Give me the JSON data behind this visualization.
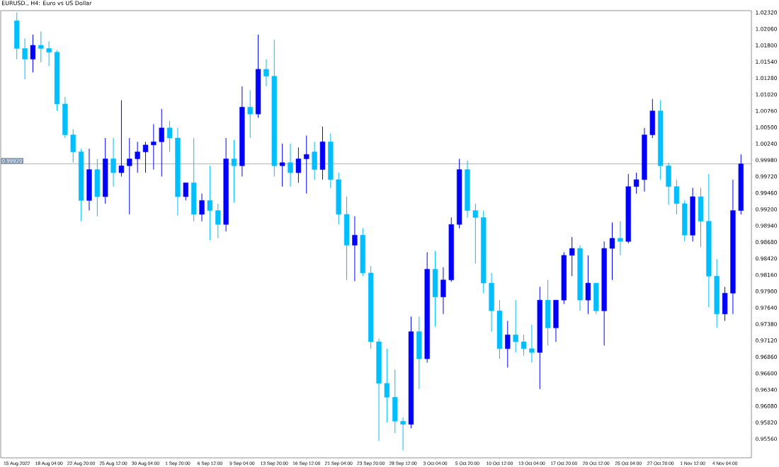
{
  "chart_data": {
    "type": "candlestick",
    "title": "EURUSD., H4:  Euro vs US Dollar",
    "categories": [
      "15 Aug 2022",
      null,
      null,
      null,
      "18 Aug 04:00",
      null,
      null,
      null,
      "22 Aug 20:00",
      null,
      null,
      null,
      "25 Aug 12:00",
      null,
      null,
      null,
      "30 Aug 04:00",
      null,
      null,
      null,
      "1 Sep 20:00",
      null,
      null,
      null,
      "6 Sep 12:00",
      null,
      null,
      null,
      "9 Sep 04:00",
      null,
      null,
      null,
      "13 Sep 20:00",
      null,
      null,
      null,
      "16 Sep 12:00",
      null,
      null,
      null,
      "21 Sep 04:00",
      null,
      null,
      null,
      "23 Sep 20:00",
      null,
      null,
      null,
      "28 Sep 12:00",
      null,
      null,
      null,
      "3 Oct 04:00",
      null,
      null,
      null,
      "5 Oct 20:00",
      null,
      null,
      null,
      "10 Oct 12:00",
      null,
      null,
      null,
      "13 Oct 04:00",
      null,
      null,
      null,
      "17 Oct 20:00",
      null,
      null,
      null,
      "20 Oct 12:00",
      null,
      null,
      null,
      "25 Oct 04:00",
      null,
      null,
      null,
      "27 Oct 20:00",
      null,
      null,
      null,
      "1 Nov 12:00",
      null,
      null,
      null,
      "4 Nov 04:00",
      null,
      null
    ],
    "ohlc": [
      [
        1.0219,
        1.0232,
        1.0158,
        1.0175
      ],
      [
        1.0175,
        1.0191,
        1.0126,
        1.0158
      ],
      [
        1.0158,
        1.0197,
        1.0137,
        1.018
      ],
      [
        1.018,
        1.0202,
        1.0153,
        1.0175
      ],
      [
        1.0175,
        1.0186,
        1.0147,
        1.0169
      ],
      [
        1.0169,
        1.0172,
        1.0076,
        1.0087
      ],
      [
        1.0087,
        1.0098,
        1.0033,
        1.0038
      ],
      [
        1.0038,
        1.0047,
        0.9994,
        1.0011
      ],
      [
        1.0011,
        1.0016,
        0.9901,
        0.9934
      ],
      [
        0.9934,
        1.0016,
        0.9918,
        0.9983
      ],
      [
        0.9983,
        1.0,
        0.9909,
        0.994
      ],
      [
        0.994,
        1.0033,
        0.9929,
        1.0
      ],
      [
        1.0,
        1.0033,
        0.9956,
        0.9978
      ],
      [
        0.9978,
        1.0093,
        0.9972,
        0.9989
      ],
      [
        0.9989,
        1.0033,
        0.9912,
        1.0
      ],
      [
        1.0,
        1.0027,
        0.9978,
        1.0011
      ],
      [
        1.0011,
        1.0027,
        0.9978,
        1.0022
      ],
      [
        1.0022,
        1.0055,
        0.9983,
        1.0027
      ],
      [
        1.0027,
        1.0079,
        0.9972,
        1.0049
      ],
      [
        1.0049,
        1.006,
        1.0011,
        1.0033
      ],
      [
        1.0033,
        1.0049,
        0.991,
        0.994
      ],
      [
        0.994,
        0.9962,
        0.9934,
        0.9962
      ],
      [
        0.9962,
        1.0033,
        0.9901,
        0.9912
      ],
      [
        0.9912,
        0.9945,
        0.9901,
        0.9934
      ],
      [
        0.9934,
        0.9989,
        0.9871,
        0.9918
      ],
      [
        0.9918,
        0.9929,
        0.9874,
        0.9896
      ],
      [
        0.9896,
        1.0033,
        0.9885,
        1.0
      ],
      [
        1.0,
        1.003,
        0.9931,
        0.9989
      ],
      [
        0.9989,
        1.0115,
        0.9972,
        1.0082
      ],
      [
        1.0082,
        1.0109,
        1.0033,
        1.0071
      ],
      [
        1.0071,
        1.0197,
        1.0065,
        1.0142
      ],
      [
        1.0142,
        1.0158,
        1.0115,
        1.0131
      ],
      [
        1.0131,
        1.0189,
        0.9972,
        0.9989
      ],
      [
        0.9989,
        1.0024,
        0.9956,
        0.9994
      ],
      [
        0.9994,
        1.0024,
        0.9956,
        0.9978
      ],
      [
        0.9978,
        1.0018,
        0.9962,
        1.0
      ],
      [
        1.0,
        1.0037,
        0.9945,
        1.0007
      ],
      [
        1.0011,
        1.0027,
        0.9967,
        0.9983
      ],
      [
        0.9983,
        1.0051,
        0.9967,
        1.0027
      ],
      [
        1.0027,
        1.004,
        0.9954,
        0.9967
      ],
      [
        0.9967,
        0.9978,
        0.9896,
        0.9912
      ],
      [
        0.9912,
        0.994,
        0.9808,
        0.9863
      ],
      [
        0.9863,
        0.9909,
        0.9806,
        0.9879
      ],
      [
        0.9879,
        0.989,
        0.9814,
        0.9819
      ],
      [
        0.9819,
        0.983,
        0.9699,
        0.971
      ],
      [
        0.971,
        0.9715,
        0.9553,
        0.9644
      ],
      [
        0.9644,
        0.9699,
        0.9582,
        0.9622
      ],
      [
        0.9622,
        0.9666,
        0.9565,
        0.9584
      ],
      [
        0.9584,
        0.959,
        0.9538,
        0.9579
      ],
      [
        0.9579,
        0.975,
        0.9573,
        0.9726
      ],
      [
        0.9726,
        0.975,
        0.9635,
        0.9683
      ],
      [
        0.9683,
        0.9852,
        0.9677,
        0.9825
      ],
      [
        0.9825,
        0.9854,
        0.9734,
        0.9781
      ],
      [
        0.9781,
        0.9828,
        0.9754,
        0.9808
      ],
      [
        0.9808,
        0.9907,
        0.9805,
        0.9896
      ],
      [
        0.9896,
        1.0,
        0.989,
        0.9983
      ],
      [
        0.9983,
        0.9997,
        0.9907,
        0.9918
      ],
      [
        0.9918,
        0.9929,
        0.9834,
        0.9907
      ],
      [
        0.9907,
        0.9918,
        0.9787,
        0.9803
      ],
      [
        0.9803,
        0.9819,
        0.9726,
        0.9759
      ],
      [
        0.9759,
        0.9776,
        0.9683,
        0.9699
      ],
      [
        0.9699,
        0.9743,
        0.9669,
        0.9721
      ],
      [
        0.9721,
        0.9776,
        0.9693,
        0.971
      ],
      [
        0.971,
        0.9721,
        0.9688,
        0.9699
      ],
      [
        0.9699,
        0.9737,
        0.9677,
        0.9693
      ],
      [
        0.9693,
        0.9797,
        0.9635,
        0.9776
      ],
      [
        0.9776,
        0.9808,
        0.9704,
        0.9732
      ],
      [
        0.9732,
        0.9776,
        0.971,
        0.9776
      ],
      [
        0.9776,
        0.9852,
        0.977,
        0.9847
      ],
      [
        0.9847,
        0.9876,
        0.9814,
        0.9858
      ],
      [
        0.9858,
        0.9863,
        0.9759,
        0.9776
      ],
      [
        0.9776,
        0.9847,
        0.9754,
        0.9803
      ],
      [
        0.9803,
        0.9803,
        0.9754,
        0.9759
      ],
      [
        0.9759,
        0.9869,
        0.9704,
        0.9858
      ],
      [
        0.9858,
        0.9899,
        0.9808,
        0.9874
      ],
      [
        0.9874,
        0.9901,
        0.9847,
        0.9869
      ],
      [
        0.9869,
        0.9976,
        0.9866,
        0.9956
      ],
      [
        0.9956,
        0.9978,
        0.9945,
        0.9967
      ],
      [
        0.9967,
        1.0049,
        0.9948,
        1.0038
      ],
      [
        1.0038,
        1.0095,
        1.0033,
        1.0076
      ],
      [
        1.0076,
        1.0093,
        0.9967,
        0.9989
      ],
      [
        0.9989,
        0.9994,
        0.9927,
        0.9956
      ],
      [
        0.9956,
        0.9967,
        0.9912,
        0.9929
      ],
      [
        0.9929,
        0.9934,
        0.9869,
        0.9879
      ],
      [
        0.9879,
        0.9954,
        0.9869,
        0.994
      ],
      [
        0.994,
        0.9954,
        0.986,
        0.9901
      ],
      [
        0.9901,
        0.9976,
        0.9765,
        0.9814
      ],
      [
        0.9814,
        0.9841,
        0.9732,
        0.9754
      ],
      [
        0.9754,
        0.9797,
        0.9743,
        0.9787
      ],
      [
        0.9787,
        0.9967,
        0.9754,
        0.9918
      ],
      [
        0.9918,
        1.0007,
        0.9912,
        0.9992
      ]
    ],
    "colors": [
      "#00bfff",
      "#00bfff",
      "#0000ff",
      "#00bfff",
      "#00bfff",
      "#00bfff",
      "#00bfff",
      "#00bfff",
      "#00bfff",
      "#0000ff",
      "#00bfff",
      "#0000ff",
      "#00bfff",
      "#0000ff",
      "#0000ff",
      "#0000ff",
      "#0000ff",
      "#0000ff",
      "#0000ff",
      "#00bfff",
      "#00bfff",
      "#0000ff",
      "#00bfff",
      "#0000ff",
      "#00bfff",
      "#00bfff",
      "#0000ff",
      "#00bfff",
      "#0000ff",
      "#00bfff",
      "#0000ff",
      "#00bfff",
      "#00bfff",
      "#0000ff",
      "#00bfff",
      "#0000ff",
      "#0000ff",
      "#00bfff",
      "#0000ff",
      "#00bfff",
      "#00bfff",
      "#00bfff",
      "#0000ff",
      "#00bfff",
      "#00bfff",
      "#00bfff",
      "#00bfff",
      "#00bfff",
      "#00bfff",
      "#0000ff",
      "#00bfff",
      "#0000ff",
      "#00bfff",
      "#0000ff",
      "#0000ff",
      "#0000ff",
      "#00bfff",
      "#00bfff",
      "#00bfff",
      "#00bfff",
      "#00bfff",
      "#0000ff",
      "#00bfff",
      "#00bfff",
      "#00bfff",
      "#0000ff",
      "#00bfff",
      "#0000ff",
      "#0000ff",
      "#0000ff",
      "#00bfff",
      "#0000ff",
      "#00bfff",
      "#0000ff",
      "#0000ff",
      "#00bfff",
      "#0000ff",
      "#0000ff",
      "#0000ff",
      "#0000ff",
      "#00bfff",
      "#00bfff",
      "#00bfff",
      "#00bfff",
      "#0000ff",
      "#00bfff",
      "#00bfff",
      "#00bfff",
      "#0000ff",
      "#0000ff",
      "#0000ff"
    ],
    "ylim": [
      0.9526,
      1.0235
    ],
    "yticks": [
      {
        "value": 0.9556,
        "label": "0.95560"
      },
      {
        "value": 0.9582,
        "label": "0.95820"
      },
      {
        "value": 0.9608,
        "label": "0.96080"
      },
      {
        "value": 0.9634,
        "label": "0.96340"
      },
      {
        "value": 0.966,
        "label": "0.96600"
      },
      {
        "value": 0.9686,
        "label": "0.96860"
      },
      {
        "value": 0.9712,
        "label": "0.97120"
      },
      {
        "value": 0.9738,
        "label": "0.97380"
      },
      {
        "value": 0.9764,
        "label": "0.97640"
      },
      {
        "value": 0.979,
        "label": "0.97900"
      },
      {
        "value": 0.9816,
        "label": "0.98160"
      },
      {
        "value": 0.9842,
        "label": "0.98420"
      },
      {
        "value": 0.9868,
        "label": "0.98680"
      },
      {
        "value": 0.9894,
        "label": "0.98940"
      },
      {
        "value": 0.992,
        "label": "0.99200"
      },
      {
        "value": 0.9946,
        "label": "0.99460"
      },
      {
        "value": 0.9972,
        "label": "0.99720"
      },
      {
        "value": 0.9998,
        "label": "0.99980"
      },
      {
        "value": 1.0024,
        "label": "1.00240"
      },
      {
        "value": 1.005,
        "label": "1.00500"
      },
      {
        "value": 1.0076,
        "label": "1.00760"
      },
      {
        "value": 1.0102,
        "label": "1.01020"
      },
      {
        "value": 1.0128,
        "label": "1.01280"
      },
      {
        "value": 1.0154,
        "label": "1.01540"
      },
      {
        "value": 1.018,
        "label": "1.01800"
      },
      {
        "value": 1.0206,
        "label": "1.02060"
      },
      {
        "value": 1.0232,
        "label": "1.02320"
      }
    ],
    "ref_lines": [
      {
        "axis": "y",
        "value": 0.9992,
        "label": "0.99920",
        "color": "#8096b0"
      }
    ]
  }
}
